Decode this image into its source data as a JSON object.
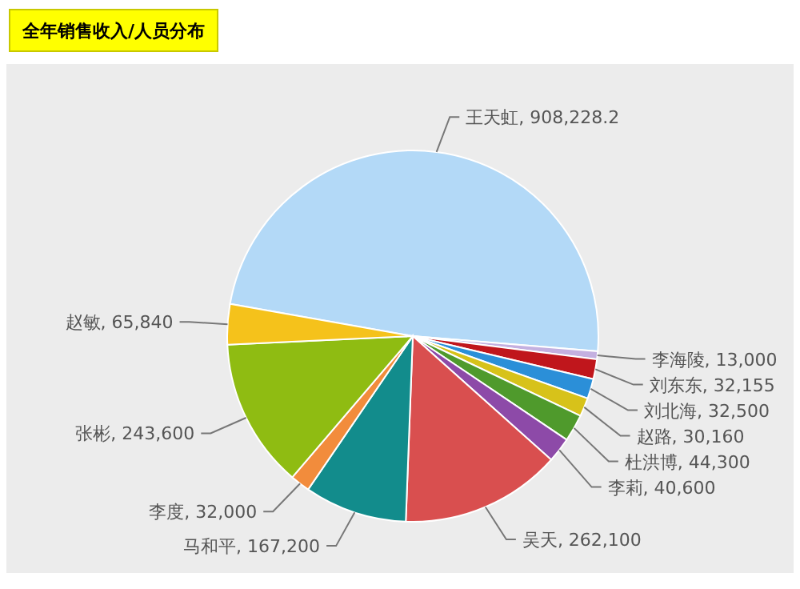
{
  "chart_data": {
    "type": "pie",
    "title": "全年销售收入/人员分布",
    "categories": [
      "王天虹",
      "李海陵",
      "刘东东",
      "刘北海",
      "赵路",
      "杜洪博",
      "李莉",
      "吴天",
      "马和平",
      "李度",
      "张彬",
      "赵敏"
    ],
    "values": [
      908228.2,
      13000,
      32155,
      32500,
      30160,
      44300,
      40600,
      262100,
      167200,
      32000,
      243600,
      65840
    ],
    "value_labels": [
      ", 908,228.2",
      ", 13,000",
      ", 32,155",
      ", 32,500",
      ", 30,160",
      ", 44,300",
      ", 40,600",
      ", 262,100",
      ", 167,200",
      ", 32,000",
      ", 243,600",
      ", 65,840"
    ],
    "colors": [
      "#b3d9f7",
      "#c4b0e0",
      "#c0161c",
      "#2b8fd8",
      "#d7c21a",
      "#4f9a2c",
      "#8d4aa8",
      "#d94f4f",
      "#128c8c",
      "#f28c3c",
      "#8fbc12",
      "#f5c21b"
    ]
  }
}
